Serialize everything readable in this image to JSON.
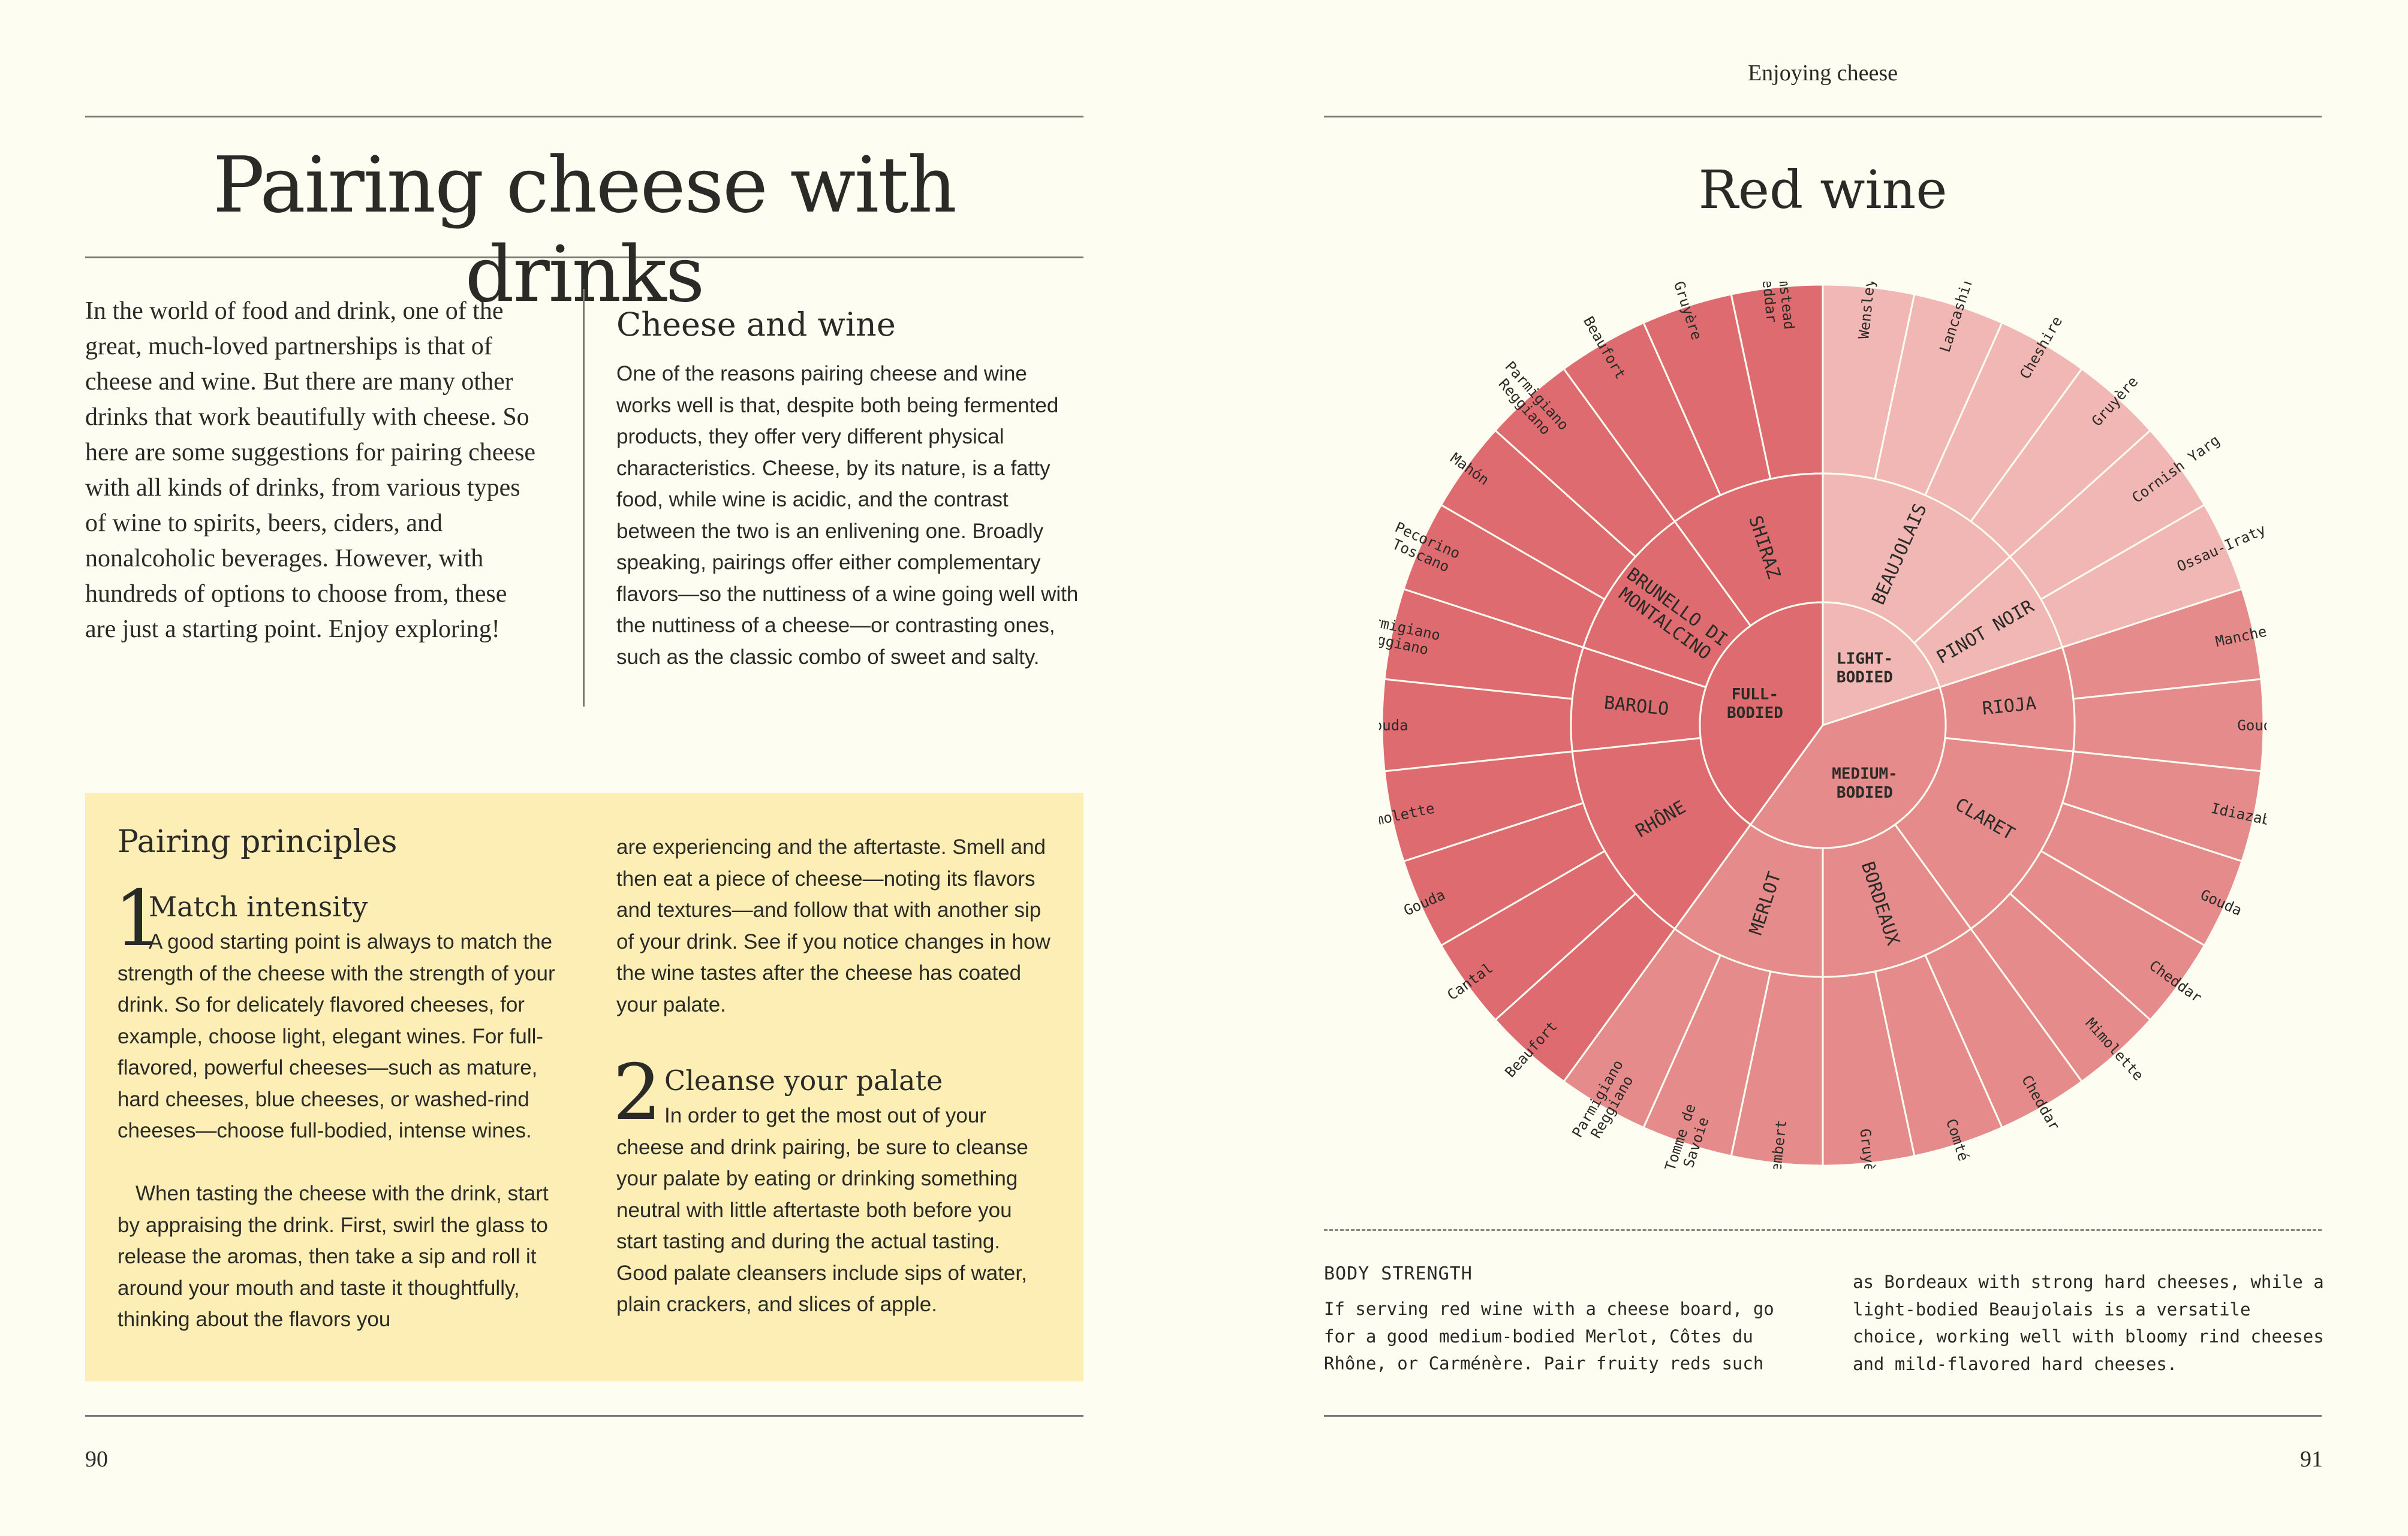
{
  "header": {
    "section_label": "Enjoying cheese"
  },
  "left_page": {
    "title": "Pairing cheese with drinks",
    "intro": "In the world of food and drink, one of the great, much-loved partnerships is that of cheese and wine. But there are many other drinks that work beautifully with cheese. So here are some suggestions for pairing cheese with all kinds of drinks, from various types of wine to spirits, beers, ciders, and nonalcoholic beverages. However, with hundreds of options to choose from, these are just a starting point. Enjoy exploring!",
    "cheese_and_wine": {
      "heading": "Cheese and wine",
      "body": "One of the reasons pairing cheese and wine works well is that, despite both being fermented products, they offer very different physical characteristics. Cheese, by its nature, is a fatty food, while wine is acidic, and the contrast between the two is an enlivening one. Broadly speaking, pairings offer either complementary flavors—so the nuttiness of a wine going well with the nuttiness of a cheese—or contrasting ones, such as the classic combo of sweet and salty."
    },
    "principles": {
      "title": "Pairing principles",
      "items": [
        {
          "number": "1",
          "heading": "Match intensity",
          "para1": "A good starting point is always to match the strength of the cheese with the strength of your drink. So for delicately flavored cheeses, for example, choose light, elegant wines. For full-flavored, powerful cheeses—such as mature, hard cheeses, blue cheeses, or washed-rind cheeses—choose full-bodied, intense wines.",
          "para2": "When tasting the cheese with the drink, start by appraising the drink. First, swirl the glass to release the aromas, then take a sip and roll it around your mouth and taste it thoughtfully, thinking about the flavors you are experiencing and the aftertaste. Smell and then eat a piece of cheese—noting its flavors and textures—and follow that with another sip of your drink. See if you notice changes in how the wine tastes after the cheese has coated your palate."
        },
        {
          "number": "2",
          "heading": "Cleanse your palate",
          "body": "In order to get the most out of your cheese and drink pairing, be sure to cleanse your palate by eating or drinking something neutral with little aftertaste both before you start tasting and during the actual tasting. Good palate cleansers include sips of water, plain crackers, and slices of apple."
        }
      ]
    },
    "folio": "90"
  },
  "right_page": {
    "title": "Red wine",
    "body_strength": {
      "label": "BODY STRENGTH",
      "col1": "If serving red wine with a cheese board, go for a good medium-bodied Merlot, Côtes du Rhône, or Carménère. Pair fruity reds such",
      "col2": "as Bordeaux with strong hard cheeses, while a light-bodied Beaujolais is a versatile choice, working well with bloomy rind cheeses and mild-flavored hard cheeses."
    },
    "folio": "91"
  },
  "wheel": {
    "colors": {
      "full": "#dd6b6f",
      "medium": "#e58b8c",
      "light": "#f0b7b4",
      "stroke": "#fefdf1"
    },
    "groups": [
      {
        "name": "LIGHT-\nBODIED",
        "tone": "light",
        "wines": [
          {
            "name": "BEAUJOLAIS",
            "cheeses": [
              "Wensleydale",
              "Lancashire",
              "Cheshire",
              "Gruyère"
            ]
          },
          {
            "name": "PINOT NOIR",
            "cheeses": [
              "Cornish Yarg",
              "Ossau-Iraty"
            ]
          }
        ]
      },
      {
        "name": "MEDIUM-\nBODIED",
        "tone": "medium",
        "wines": [
          {
            "name": "RIOJA",
            "cheeses": [
              "Manchego",
              "Gouda"
            ]
          },
          {
            "name": "CLARET",
            "cheeses": [
              "Idiazabal",
              "Gouda",
              "Cheddar",
              "Mimolette"
            ]
          },
          {
            "name": "BORDEAUX",
            "cheeses": [
              "Cheddar",
              "Comté",
              "Gruyère"
            ]
          },
          {
            "name": "MERLOT",
            "cheeses": [
              "Camembert",
              "Tomme de\nSavoie",
              "Parmigiano\nReggiano"
            ]
          }
        ]
      },
      {
        "name": "FULL-\nBODIED",
        "tone": "full",
        "wines": [
          {
            "name": "RHÔNE",
            "cheeses": [
              "Beaufort",
              "Cantal",
              "Gouda",
              "Mimolette"
            ]
          },
          {
            "name": "BAROLO",
            "cheeses": [
              "Gouda",
              "Parmigiano\nReggiano"
            ]
          },
          {
            "name": "BRUNELLO DI\nMONTALCINO",
            "cheeses": [
              "Pecorino\nToscano",
              "Mahón",
              "Parmigiano\nReggiano"
            ]
          },
          {
            "name": "SHIRAZ",
            "cheeses": [
              "Beaufort",
              "Gruyère",
              "Farmstead\nCheddar"
            ]
          }
        ]
      }
    ]
  }
}
